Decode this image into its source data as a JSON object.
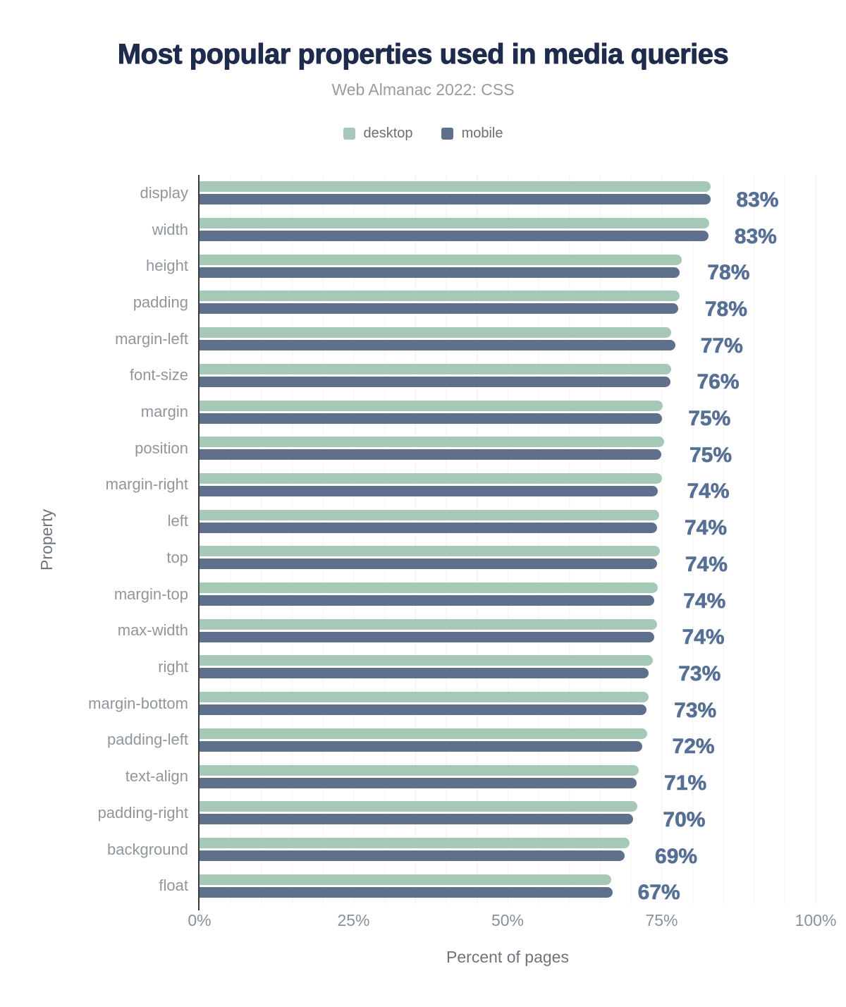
{
  "title": "Most popular properties used in media queries",
  "subtitle": "Web Almanac 2022: CSS",
  "legend": {
    "items": [
      {
        "label": "desktop",
        "color": "#a6c9b7"
      },
      {
        "label": "mobile",
        "color": "#5f708c"
      }
    ]
  },
  "colors": {
    "title": "#1e2b4c",
    "subtitle": "#9b9b9b",
    "legend_text": "#6f6f6f",
    "desktop_bar": "#a6c9b7",
    "mobile_bar": "#5f708c",
    "value_label": "#566f94",
    "category_label": "#90969c",
    "tick_label": "#8a9199",
    "axis_title": "#6e747b",
    "gridline": "#f2f2f2",
    "axis_line": "#3a3b3d"
  },
  "axes": {
    "x_title": "Percent of pages",
    "y_title": "Property",
    "x_ticks": [
      {
        "label": "0%",
        "value": 0
      },
      {
        "label": "25%",
        "value": 25
      },
      {
        "label": "50%",
        "value": 50
      },
      {
        "label": "75%",
        "value": 75
      },
      {
        "label": "100%",
        "value": 100
      }
    ]
  },
  "chart_data": {
    "type": "bar",
    "orientation": "horizontal",
    "title": "Most popular properties used in media queries",
    "subtitle": "Web Almanac 2022: CSS",
    "xlabel": "Percent of pages",
    "ylabel": "Property",
    "xlim": [
      0,
      100
    ],
    "grid": true,
    "grid_step_pct": 5,
    "legend_position": "top",
    "categories": [
      "display",
      "width",
      "height",
      "padding",
      "margin-left",
      "font-size",
      "margin",
      "position",
      "margin-right",
      "left",
      "top",
      "margin-top",
      "max-width",
      "right",
      "margin-bottom",
      "padding-left",
      "text-align",
      "padding-right",
      "background",
      "float"
    ],
    "series": [
      {
        "name": "desktop",
        "values": [
          82.9,
          82.7,
          78.3,
          77.9,
          76.6,
          76.6,
          75.2,
          75.4,
          75.0,
          74.6,
          74.7,
          74.4,
          74.2,
          73.6,
          72.9,
          72.6,
          71.3,
          71.1,
          69.8,
          66.8
        ]
      },
      {
        "name": "mobile",
        "values": [
          83.0,
          82.6,
          77.9,
          77.7,
          77.2,
          76.4,
          75.1,
          74.9,
          74.4,
          74.3,
          74.2,
          73.8,
          73.8,
          72.9,
          72.5,
          71.9,
          70.9,
          70.4,
          69.0,
          67.0
        ]
      }
    ],
    "bar_labels": [
      "83%",
      "83%",
      "78%",
      "78%",
      "77%",
      "76%",
      "75%",
      "75%",
      "74%",
      "74%",
      "74%",
      "74%",
      "74%",
      "73%",
      "73%",
      "72%",
      "71%",
      "70%",
      "69%",
      "67%"
    ],
    "bar_label_series": "mobile"
  }
}
